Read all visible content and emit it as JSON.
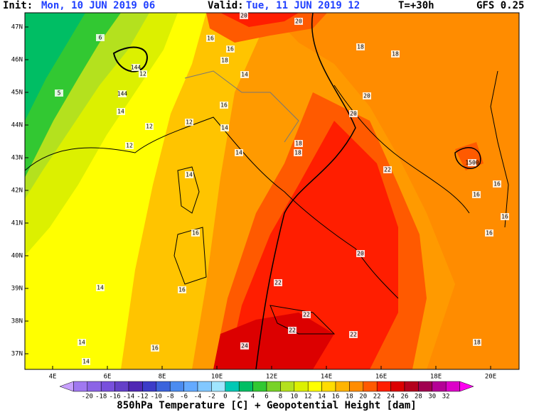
{
  "header": {
    "init_label": "Init:",
    "init_value": "Mon, 10 JUN 2019  06",
    "valid_label": "Valid:",
    "valid_value": "Tue, 11 JUN 2019  12",
    "lead": "T=+30h",
    "model": "GFS 0.25"
  },
  "latitudes": [
    "47N",
    "46N",
    "45N",
    "44N",
    "43N",
    "42N",
    "41N",
    "40N",
    "39N",
    "38N",
    "37N"
  ],
  "longitudes": [
    "4E",
    "6E",
    "8E",
    "10E",
    "12E",
    "14E",
    "16E",
    "18E",
    "20E"
  ],
  "colorbar": {
    "ticks": [
      -20,
      -18,
      -16,
      -14,
      -12,
      -10,
      -8,
      -6,
      -4,
      -2,
      0,
      2,
      4,
      6,
      8,
      10,
      12,
      14,
      16,
      18,
      20,
      22,
      24,
      26,
      28,
      30,
      32
    ],
    "colors": [
      "#c8a0ff",
      "#a078f0",
      "#8c64e6",
      "#7850dc",
      "#6440c8",
      "#5028b4",
      "#3c3cc8",
      "#3c64dc",
      "#4b8cf0",
      "#64aaff",
      "#82c8ff",
      "#a0e6ff",
      "#00c8b4",
      "#00be64",
      "#32c832",
      "#78d228",
      "#b4e11e",
      "#dcf000",
      "#ffff00",
      "#ffdc00",
      "#ffb400",
      "#ff8c00",
      "#ff5a00",
      "#ff1e00",
      "#dc0000",
      "#b4001e",
      "#a00050",
      "#b40096",
      "#dc00c8",
      "#ff00f0"
    ],
    "caption": "850hPa Temperature [C] + Geopotential Height [dam]"
  },
  "map_labels": [
    "20",
    "20",
    "16",
    "16",
    "18",
    "14",
    "18",
    "18",
    "6",
    "144",
    "12",
    "5",
    "144",
    "14",
    "12",
    "16",
    "12",
    "14",
    "12",
    "18",
    "18",
    "14",
    "20",
    "20",
    "22",
    "1500",
    "14",
    "16",
    "20",
    "22",
    "16",
    "14",
    "22",
    "22",
    "22",
    "24",
    "14",
    "16",
    "14",
    "18",
    "16",
    "16",
    "16",
    "16"
  ]
}
